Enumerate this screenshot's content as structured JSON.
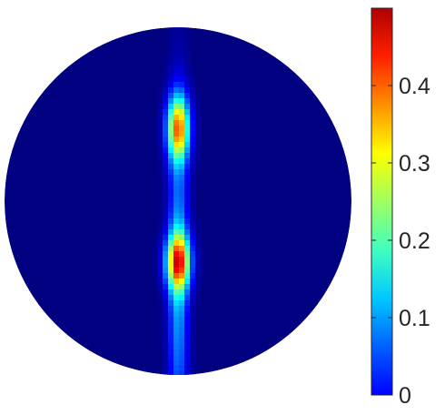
{
  "chart_data": {
    "type": "heatmap",
    "title": "",
    "xlabel": "",
    "ylabel": "",
    "domain": "circular",
    "colormap": "jet",
    "grid": false,
    "color_range": [
      0,
      0.5
    ],
    "colorbar": {
      "placement": "right",
      "ticks": [
        {
          "value": 0,
          "label": "0"
        },
        {
          "value": 0.1,
          "label": "0.1"
        },
        {
          "value": 0.2,
          "label": "0.2"
        },
        {
          "value": 0.3,
          "label": "0.3"
        },
        {
          "value": 0.4,
          "label": "0.4"
        }
      ]
    },
    "features": [
      {
        "x": 0.0,
        "y": -0.44,
        "sx": 0.04,
        "sy": 0.65,
        "peak": 0.15
      },
      {
        "x": 0.0,
        "y": 0.42,
        "sx": 0.045,
        "sy": 0.13,
        "peak": 0.34
      },
      {
        "x": 0.0,
        "y": -0.35,
        "sx": 0.05,
        "sy": 0.11,
        "peak": 0.33
      }
    ]
  }
}
